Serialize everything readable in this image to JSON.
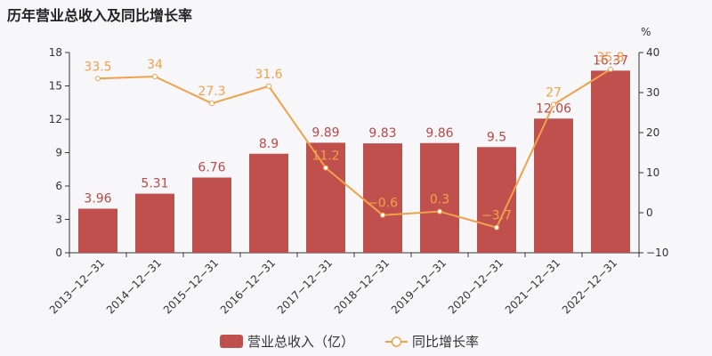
{
  "title": "历年营业总收入及同比增长率",
  "colors": {
    "bar": "#c0504d",
    "line": "#f0a24a",
    "bar_label": "#b84a47"
  },
  "chart_data": {
    "type": "bar",
    "categories": [
      "2013-12-31",
      "2014-12-31",
      "2015-12-31",
      "2016-12-31",
      "2017-12-31",
      "2018-12-31",
      "2019-12-31",
      "2020-12-31",
      "2021-12-31",
      "2022-12-31"
    ],
    "series": [
      {
        "name": "营业总收入（亿）",
        "type": "bar",
        "axis": "left",
        "values": [
          3.96,
          5.31,
          6.76,
          8.9,
          9.89,
          9.83,
          9.86,
          9.5,
          12.06,
          16.37
        ],
        "labels": [
          "3.96",
          "5.31",
          "6.76",
          "8.9",
          "9.89",
          "9.83",
          "9.86",
          "9.5",
          "12.06",
          "16.37"
        ]
      },
      {
        "name": "同比增长率",
        "type": "line",
        "axis": "right",
        "values": [
          33.5,
          34,
          27.3,
          31.6,
          11.2,
          -0.6,
          0.3,
          -3.7,
          27,
          35.8
        ],
        "labels": [
          "33.5",
          "34",
          "27.3",
          "31.6",
          "11.2",
          "-0.6",
          "0.3",
          "-3.7",
          "27",
          "35.8"
        ]
      }
    ],
    "y_left": {
      "ylim": [
        0,
        18
      ],
      "ticks": [
        "0",
        "3",
        "6",
        "9",
        "12",
        "15",
        "18"
      ]
    },
    "y_right": {
      "ylim": [
        -10,
        40
      ],
      "ticks": [
        "-10",
        "0",
        "10",
        "20",
        "30",
        "40"
      ],
      "unit": "%"
    },
    "legend": "bottom-center",
    "grid": false
  }
}
